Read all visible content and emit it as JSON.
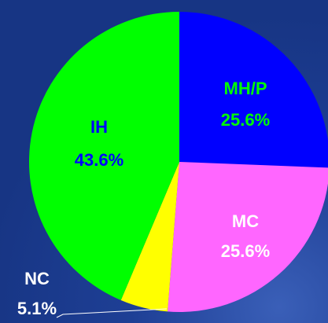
{
  "chart_data": {
    "type": "pie",
    "categories": [
      "MH/P",
      "MC",
      "NC",
      "IH"
    ],
    "values": [
      25.6,
      25.6,
      5.1,
      43.6
    ],
    "value_labels": [
      "25.6%",
      "25.6%",
      "5.1%",
      "43.6%"
    ],
    "colors": [
      "#0000ff",
      "#ff66ff",
      "#ffff00",
      "#00ff00"
    ]
  }
}
